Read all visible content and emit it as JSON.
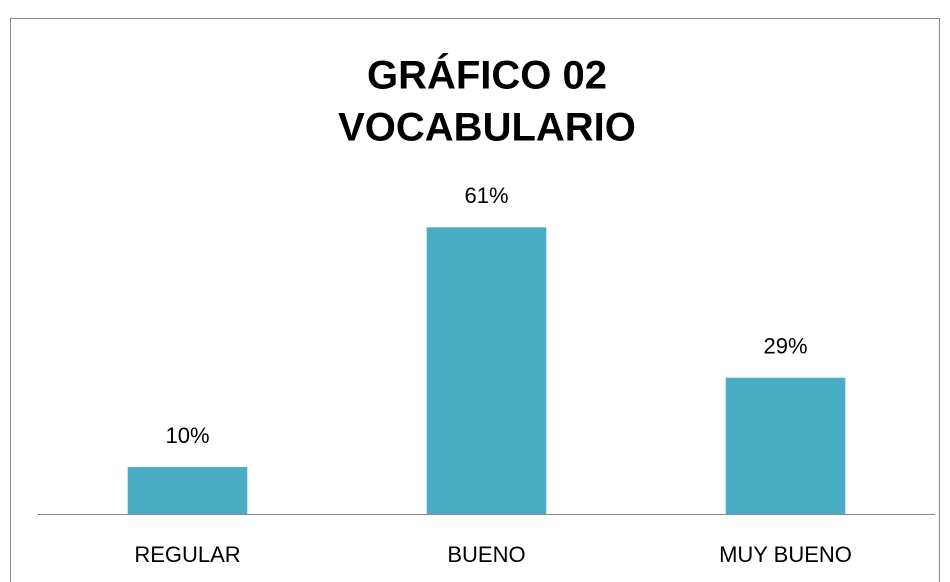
{
  "chart_data": {
    "type": "bar",
    "title": [
      "GRÁFICO 02",
      "VOCABULARIO"
    ],
    "categories": [
      "REGULAR",
      "BUENO",
      "MUY BUENO"
    ],
    "values": [
      10,
      61,
      29
    ],
    "value_labels": [
      "10%",
      "61%",
      "29%"
    ],
    "color": "#4bacc6",
    "ylim": [
      0,
      100
    ]
  }
}
